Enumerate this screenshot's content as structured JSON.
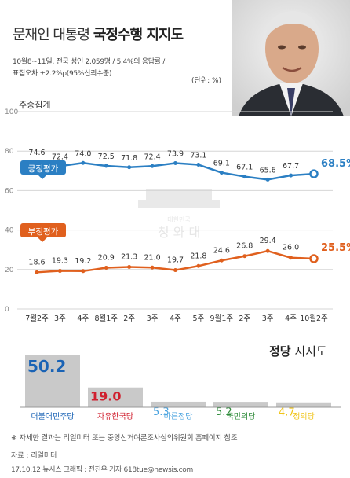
{
  "header": {
    "title_prefix": "문재인 대통령 ",
    "title_bold": "국정수행 지지도",
    "subtitle_line1": "10월8~11일, 전국 성인 2,059명 / 5.4%의 응답률 /",
    "subtitle_line2": "표집오차 ±2.2%p(95%신뢰수준)",
    "unit": "(단위: %)",
    "weekly_label": "주중집계"
  },
  "watermark": {
    "small": "대한민국",
    "big": "청 와 대"
  },
  "chart_data": [
    {
      "type": "line",
      "x": [
        "7월2주",
        "3주",
        "4주",
        "8월1주",
        "2주",
        "3주",
        "4주",
        "5주",
        "9월1주",
        "2주",
        "3주",
        "4주",
        "10월2주"
      ],
      "ylim": [
        0,
        100
      ],
      "yticks": [
        0,
        20,
        40,
        60,
        80,
        100
      ],
      "grid": true,
      "series": [
        {
          "name": "긍정평가",
          "color": "#2b7fc3",
          "values": [
            74.6,
            72.4,
            74.0,
            72.5,
            71.8,
            72.4,
            73.9,
            73.1,
            69.1,
            67.1,
            65.6,
            67.7,
            68.5
          ],
          "labels": [
            "74.6",
            "72.4",
            "74.0",
            "72.5",
            "71.8",
            "72.4",
            "73.9",
            "73.1",
            "69.1",
            "67.1",
            "65.6",
            "67.7",
            "68.5%"
          ]
        },
        {
          "name": "부정평가",
          "color": "#e0601e",
          "values": [
            18.6,
            19.3,
            19.2,
            20.9,
            21.3,
            21.0,
            19.7,
            21.8,
            24.6,
            26.8,
            29.4,
            26.0,
            25.5
          ],
          "labels": [
            "18.6",
            "19.3",
            "19.2",
            "20.9",
            "21.3",
            "21.0",
            "19.7",
            "21.8",
            "24.6",
            "26.8",
            "29.4",
            "26.0",
            "25.5%"
          ]
        }
      ]
    },
    {
      "type": "bar",
      "title_bold": "정당",
      "title_rest": " 지지도",
      "categories": [
        "더불어민주당",
        "자유한국당",
        "바른정당",
        "국민의당",
        "정의당"
      ],
      "values": [
        50.2,
        19.0,
        5.3,
        5.2,
        4.7
      ],
      "value_labels": [
        "50.2",
        "19.0",
        "5.3",
        "5.2",
        "4.7"
      ],
      "colors": [
        "#1a63b5",
        "#d01f2e",
        "#4aa3df",
        "#2e8b3a",
        "#f0c419"
      ]
    }
  ],
  "footer": {
    "note": "※ 자세한 결과는 리얼미터 또는 중앙선거여론조사심의위원회 홈페이지 참조",
    "source": "자료 : 리얼미터",
    "credit": "17.10.12 뉴시스 그래픽 : 전진우 기자 618tue@newsis.com"
  }
}
